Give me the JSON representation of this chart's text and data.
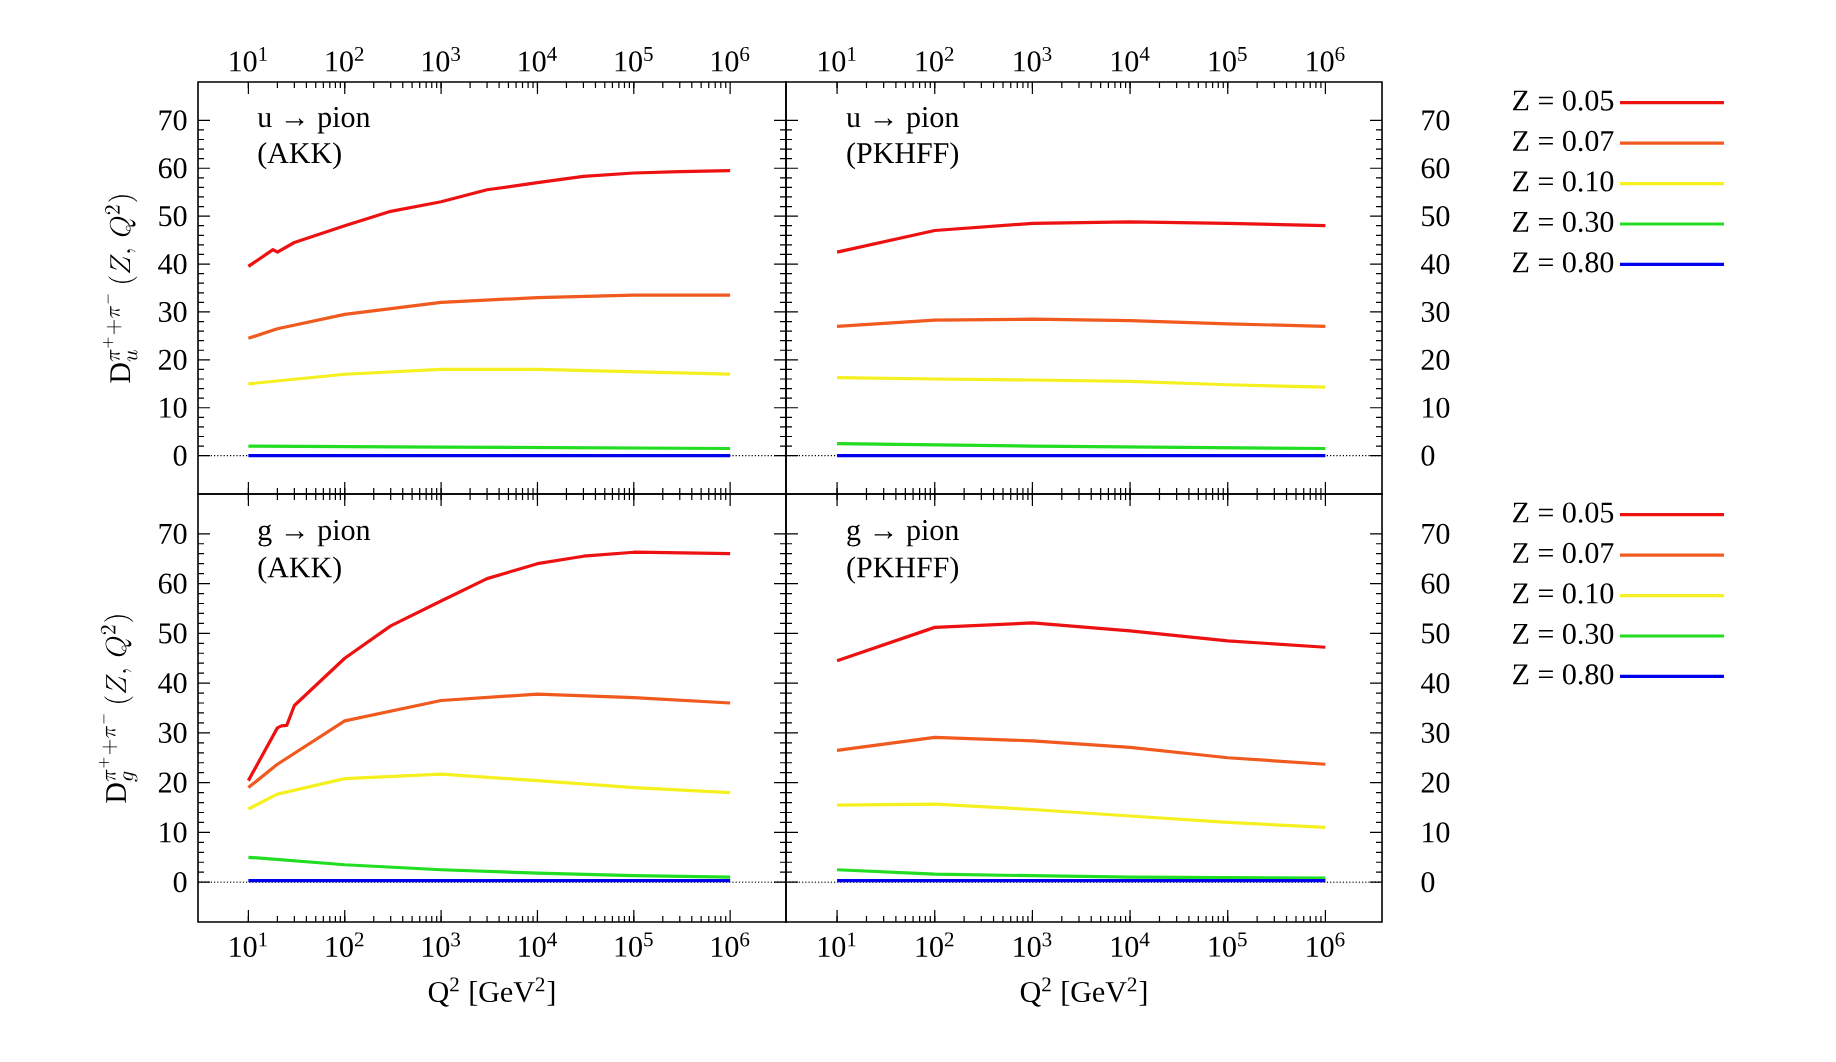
{
  "chart_data": [
    {
      "type": "line",
      "log": "x",
      "legend": false,
      "ylabel": "\\mathrm{D}_{u}^{\\pi^{+}+\\pi^{-}}\\,(Z,\\,Q^{2})",
      "annotations": [
        "u → pion",
        "(AKK)"
      ],
      "xlim": [
        3,
        3800000
      ],
      "xticks": [
        {
          "value": 10,
          "label": "10$^{1}$"
        },
        {
          "value": 100,
          "label": "10$^{2}$"
        },
        {
          "value": 1000,
          "label": "10$^{3}$"
        },
        {
          "value": 10000,
          "label": "10$^{4}$"
        },
        {
          "value": 100000,
          "label": "10$^{5}$"
        },
        {
          "value": 1000000,
          "label": "10$^{6}$"
        }
      ],
      "ylim": [
        -8,
        78
      ],
      "yticks": [
        0,
        10,
        20,
        30,
        40,
        50,
        60,
        70
      ],
      "ref_lines": [
        {
          "axis": "y",
          "value": 0,
          "line_style": "dotted",
          "color": "#000000"
        }
      ],
      "series": [
        {
          "color": "#ee1111",
          "x": [
            10,
            18,
            20,
            30,
            100,
            300,
            1000,
            3000,
            10000,
            30000,
            100000,
            300000,
            1000000
          ],
          "values": [
            39.5,
            43,
            42.5,
            44.5,
            48,
            51,
            53,
            55.5,
            57,
            58.3,
            59,
            59.3,
            59.5
          ]
        },
        {
          "color": "#f05a1e",
          "x": [
            10,
            20,
            100,
            1000,
            10000,
            100000,
            1000000
          ],
          "values": [
            24.5,
            26.5,
            29.5,
            32,
            33,
            33.5,
            33.5
          ]
        },
        {
          "color": "#f5f020",
          "x": [
            10,
            100,
            1000,
            10000,
            100000,
            1000000
          ],
          "values": [
            15,
            17,
            18,
            18,
            17.5,
            17
          ]
        },
        {
          "color": "#22dd22",
          "x": [
            10,
            1000,
            1000000
          ],
          "values": [
            2,
            1.8,
            1.5
          ]
        },
        {
          "color": "#0000ee",
          "x": [
            10,
            1000,
            1000000
          ],
          "values": [
            0,
            0,
            0
          ]
        }
      ]
    },
    {
      "type": "line",
      "log": "x",
      "legend": "right",
      "annotations": [
        "u → pion",
        "(PKHFF)"
      ],
      "xlim": [
        3,
        3800000
      ],
      "xticks": [
        {
          "value": 10,
          "label": "10$^{1}$"
        },
        {
          "value": 100,
          "label": "10$^{2}$"
        },
        {
          "value": 1000,
          "label": "10$^{3}$"
        },
        {
          "value": 10000,
          "label": "10$^{4}$"
        },
        {
          "value": 100000,
          "label": "10$^{5}$"
        },
        {
          "value": 1000000,
          "label": "10$^{6}$"
        }
      ],
      "ylim": [
        -8,
        78
      ],
      "yticks": [
        0,
        10,
        20,
        30,
        40,
        50,
        60,
        70
      ],
      "ref_lines": [
        {
          "axis": "y",
          "value": 0,
          "line_style": "dotted",
          "color": "#000000"
        }
      ],
      "series": [
        {
          "name": "Z = 0.05",
          "color": "#ee1111",
          "x": [
            10,
            100,
            1000,
            10000,
            100000,
            1000000
          ],
          "values": [
            42.5,
            47,
            48.5,
            48.8,
            48.5,
            48
          ]
        },
        {
          "name": "Z = 0.07",
          "color": "#f05a1e",
          "x": [
            10,
            100,
            1000,
            10000,
            100000,
            1000000
          ],
          "values": [
            27,
            28.3,
            28.5,
            28.2,
            27.5,
            27
          ]
        },
        {
          "name": "Z = 0.10",
          "color": "#f5f020",
          "x": [
            10,
            100,
            1000,
            10000,
            100000,
            1000000
          ],
          "values": [
            16.3,
            16,
            15.8,
            15.5,
            14.8,
            14.3
          ]
        },
        {
          "name": "Z = 0.30",
          "color": "#22dd22",
          "x": [
            10,
            1000,
            1000000
          ],
          "values": [
            2.5,
            2,
            1.5
          ]
        },
        {
          "name": "Z = 0.80",
          "color": "#0000ee",
          "x": [
            10,
            1000,
            1000000
          ],
          "values": [
            0,
            0,
            0
          ]
        }
      ]
    },
    {
      "type": "line",
      "log": "x",
      "legend": false,
      "xlabel": "Q$^{2}$ [GeV$^{2}$]",
      "ylabel": "\\mathrm{D}_{g}^{\\pi^{+}+\\pi^{-}}\\,(Z,\\,Q^{2})",
      "annotations": [
        "g → pion",
        "(AKK)"
      ],
      "xlim": [
        3,
        3800000
      ],
      "xticks": [
        {
          "value": 10,
          "label": "10$^{1}$"
        },
        {
          "value": 100,
          "label": "10$^{2}$"
        },
        {
          "value": 1000,
          "label": "10$^{3}$"
        },
        {
          "value": 10000,
          "label": "10$^{4}$"
        },
        {
          "value": 100000,
          "label": "10$^{5}$"
        },
        {
          "value": 1000000,
          "label": "10$^{6}$"
        }
      ],
      "ylim": [
        -8,
        78
      ],
      "yticks": [
        0,
        10,
        20,
        30,
        40,
        50,
        60,
        70
      ],
      "ref_lines": [
        {
          "axis": "y",
          "value": 0,
          "line_style": "dotted",
          "color": "#000000"
        }
      ],
      "series": [
        {
          "color": "#ee1111",
          "x": [
            10,
            20,
            22,
            25,
            30,
            100,
            300,
            1000,
            3000,
            10000,
            30000,
            100000,
            1000000
          ],
          "values": [
            20.4,
            31,
            31.4,
            31.5,
            35.5,
            45,
            51.5,
            56.5,
            61,
            64,
            65.5,
            66.3,
            66
          ]
        },
        {
          "color": "#f05a1e",
          "x": [
            10,
            20,
            100,
            1000,
            10000,
            100000,
            1000000
          ],
          "values": [
            19,
            23.7,
            32.4,
            36.5,
            37.8,
            37.1,
            36
          ]
        },
        {
          "color": "#f5f020",
          "x": [
            10,
            20,
            100,
            1000,
            10000,
            100000,
            1000000
          ],
          "values": [
            14.7,
            17.7,
            20.8,
            21.7,
            20.4,
            19,
            18
          ]
        },
        {
          "color": "#22dd22",
          "x": [
            10,
            100,
            1000,
            10000,
            100000,
            1000000
          ],
          "values": [
            5,
            3.5,
            2.5,
            1.8,
            1.3,
            1
          ]
        },
        {
          "color": "#0000ee",
          "x": [
            10,
            1000,
            1000000
          ],
          "values": [
            0.3,
            0.3,
            0.3
          ]
        }
      ]
    },
    {
      "type": "line",
      "log": "x",
      "legend": "right",
      "xlabel": "Q$^{2}$ [GeV$^{2}$]",
      "annotations": [
        "g → pion",
        "(PKHFF)"
      ],
      "xlim": [
        3,
        3800000
      ],
      "xticks": [
        {
          "value": 10,
          "label": "10$^{1}$"
        },
        {
          "value": 100,
          "label": "10$^{2}$"
        },
        {
          "value": 1000,
          "label": "10$^{3}$"
        },
        {
          "value": 10000,
          "label": "10$^{4}$"
        },
        {
          "value": 100000,
          "label": "10$^{5}$"
        },
        {
          "value": 1000000,
          "label": "10$^{6}$"
        }
      ],
      "ylim": [
        -8,
        78
      ],
      "yticks": [
        0,
        10,
        20,
        30,
        40,
        50,
        60,
        70
      ],
      "ref_lines": [
        {
          "axis": "y",
          "value": 0,
          "line_style": "dotted",
          "color": "#000000"
        }
      ],
      "series": [
        {
          "name": "Z = 0.05",
          "color": "#ee1111",
          "x": [
            10,
            100,
            1000,
            10000,
            100000,
            1000000
          ],
          "values": [
            44.5,
            51.2,
            52.1,
            50.5,
            48.5,
            47.2
          ]
        },
        {
          "name": "Z = 0.07",
          "color": "#f05a1e",
          "x": [
            10,
            100,
            1000,
            10000,
            100000,
            1000000
          ],
          "values": [
            26.5,
            29.1,
            28.4,
            27.1,
            25,
            23.7
          ]
        },
        {
          "name": "Z = 0.10",
          "color": "#f5f020",
          "x": [
            10,
            100,
            1000,
            10000,
            100000,
            1000000
          ],
          "values": [
            15.5,
            15.7,
            14.6,
            13.3,
            12,
            11
          ]
        },
        {
          "name": "Z = 0.30",
          "color": "#22dd22",
          "x": [
            10,
            100,
            10000,
            1000000
          ],
          "values": [
            2.5,
            1.6,
            1,
            0.8
          ]
        },
        {
          "name": "Z = 0.80",
          "color": "#0000ee",
          "x": [
            10,
            1000,
            1000000
          ],
          "values": [
            0.3,
            0.3,
            0.3
          ]
        }
      ]
    }
  ]
}
